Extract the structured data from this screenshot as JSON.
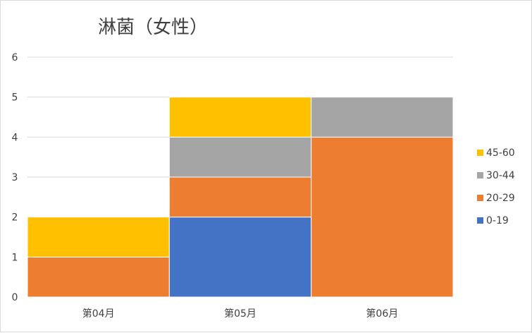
{
  "chart_data": {
    "type": "bar",
    "stacked": true,
    "title": "淋菌（女性）",
    "xlabel": "",
    "ylabel": "",
    "categories": [
      "第04月",
      "第05月",
      "第06月"
    ],
    "series": [
      {
        "name": "0-19",
        "color": "#4472C4",
        "values": [
          0,
          2,
          0
        ]
      },
      {
        "name": "20-29",
        "color": "#ED7D31",
        "values": [
          1,
          1,
          4
        ]
      },
      {
        "name": "30-44",
        "color": "#A5A5A5",
        "values": [
          0,
          1,
          1
        ]
      },
      {
        "name": "45-60",
        "color": "#FFC000",
        "values": [
          1,
          1,
          0
        ]
      }
    ],
    "ylim": [
      0,
      6
    ],
    "yticks": [
      0,
      1,
      2,
      3,
      4,
      5,
      6
    ],
    "grid": true,
    "legend": "right",
    "legend_order": [
      "45-60",
      "30-44",
      "20-29",
      "0-19"
    ]
  }
}
